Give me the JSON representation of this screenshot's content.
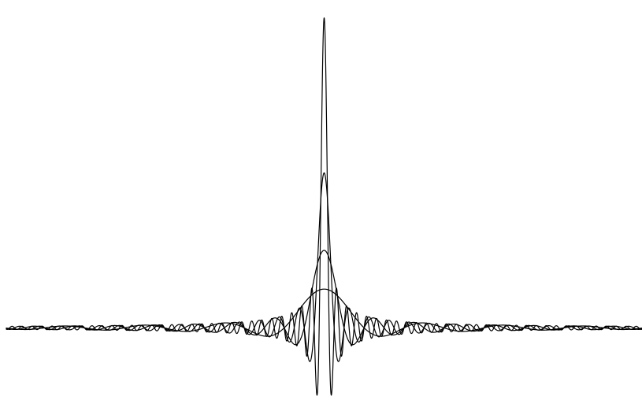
{
  "chart_data": {
    "type": "line",
    "title": "",
    "xlabel": "",
    "ylabel": "",
    "function": "sin(k*x)/x",
    "xlim": [
      -20,
      20
    ],
    "ylim": [
      -2.2,
      10.5
    ],
    "grid": false,
    "legend": "none",
    "axes_visible": false,
    "line_color": "#000000",
    "background_color": "#ffffff",
    "series": [
      {
        "k": 1.25,
        "peak": 1.25,
        "stroke_width": 1.2
      },
      {
        "k": 2.5,
        "peak": 2.5,
        "stroke_width": 1.2
      },
      {
        "k": 5.0,
        "peak": 5.0,
        "stroke_width": 1.2
      },
      {
        "k": 10.0,
        "peak": 10.0,
        "stroke_width": 1.2
      }
    ]
  }
}
